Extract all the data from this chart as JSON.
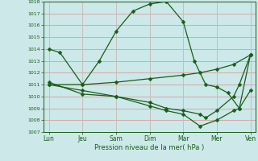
{
  "bg_color": "#cce8e8",
  "line_color": "#1a5c1a",
  "grid_color_h": "#d4a0a0",
  "grid_color_v": "#c8b8b8",
  "xlabel": "Pression niveau de la mer( hPa )",
  "ylim": [
    1007,
    1018
  ],
  "yticks": [
    1007,
    1008,
    1009,
    1010,
    1011,
    1012,
    1013,
    1014,
    1015,
    1016,
    1017,
    1018
  ],
  "xtick_labels": [
    "Lun",
    "Jeu",
    "Sam",
    "Dim",
    "Mar",
    "Mer",
    "Ven"
  ],
  "xtick_positions": [
    0,
    1,
    2,
    3,
    4,
    5,
    6
  ],
  "xlim": [
    -0.15,
    6.15
  ],
  "line1_x": [
    0,
    0.33,
    1.0,
    1.5,
    2.0,
    2.5,
    3.0,
    3.5,
    4.0,
    4.33,
    4.67,
    5.0,
    5.33,
    5.67,
    6.0
  ],
  "line1_y": [
    1014.0,
    1013.7,
    1011.0,
    1013.0,
    1015.5,
    1017.2,
    1017.8,
    1018.0,
    1016.3,
    1013.0,
    1011.0,
    1010.8,
    1010.3,
    1009.0,
    1010.5
  ],
  "line2_x": [
    0,
    1.0,
    2.0,
    3.0,
    4.0,
    4.5,
    5.0,
    5.5,
    6.0
  ],
  "line2_y": [
    1011.0,
    1011.0,
    1011.2,
    1011.5,
    1011.8,
    1012.0,
    1012.3,
    1012.7,
    1013.5
  ],
  "line3_x": [
    0,
    1.0,
    2.0,
    3.0,
    3.5,
    4.0,
    4.5,
    5.0,
    5.5,
    5.67,
    6.0
  ],
  "line3_y": [
    1011.0,
    1010.5,
    1010.0,
    1009.2,
    1008.8,
    1008.5,
    1007.5,
    1008.0,
    1008.8,
    1009.0,
    1013.5
  ],
  "line4_x": [
    0,
    1.0,
    2.0,
    3.0,
    3.5,
    4.0,
    4.5,
    4.67,
    5.0,
    5.5,
    5.67,
    6.0
  ],
  "line4_y": [
    1011.2,
    1010.2,
    1010.0,
    1009.5,
    1009.0,
    1008.8,
    1008.5,
    1008.2,
    1008.8,
    1010.0,
    1011.0,
    1013.5
  ]
}
